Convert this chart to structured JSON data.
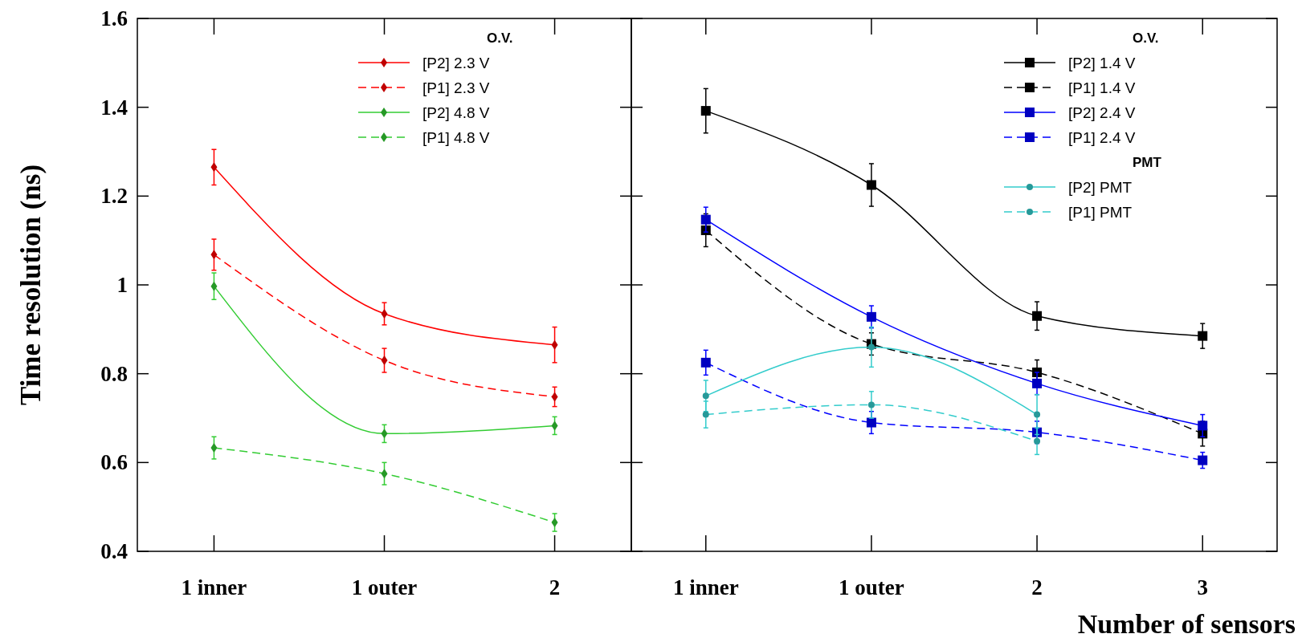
{
  "chart_data": [
    {
      "type": "line",
      "ylabel": "Time resolution (ns)",
      "legend_title": "O.V.",
      "categories": [
        "1 inner",
        "1 outer",
        "2"
      ],
      "ylim": [
        0.4,
        1.6
      ],
      "yticks": [
        0.4,
        0.6,
        0.8,
        1,
        1.2,
        1.4,
        1.6
      ],
      "legend": "top right",
      "tick_labels": "xy",
      "series": [
        {
          "name": "[P2] 2.3 V",
          "color": "#ff0000",
          "marker": "diamond",
          "line_style": "solid",
          "values": [
            1.265,
            0.935,
            0.865
          ],
          "errors": [
            0.04,
            0.025,
            0.04
          ]
        },
        {
          "name": "[P1] 2.3 V",
          "color": "#ff0000",
          "marker": "diamond",
          "line_style": "dashed",
          "values": [
            1.068,
            0.83,
            0.748
          ],
          "errors": [
            0.035,
            0.027,
            0.022
          ]
        },
        {
          "name": "[P2] 4.8 V",
          "color": "#33cc33",
          "marker": "diamond",
          "line_style": "solid",
          "values": [
            0.997,
            0.665,
            0.683
          ],
          "errors": [
            0.03,
            0.02,
            0.02
          ]
        },
        {
          "name": "[P1] 4.8 V",
          "color": "#33cc33",
          "marker": "diamond",
          "line_style": "dashed",
          "values": [
            0.633,
            0.575,
            0.465
          ],
          "errors": [
            0.025,
            0.025,
            0.02
          ]
        }
      ]
    },
    {
      "type": "line",
      "xlabel": "Number of sensors",
      "legend_title": "O.V.",
      "annotations": [
        "PMT"
      ],
      "categories": [
        "1 inner",
        "1 outer",
        "2",
        "3"
      ],
      "ylim": [
        0.4,
        1.6
      ],
      "yticks": [
        0.4,
        0.6,
        0.8,
        1,
        1.2,
        1.4,
        1.6
      ],
      "legend": "top right",
      "tick_labels": "x",
      "series": [
        {
          "name": "[P2] 1.4 V",
          "color": "#000000",
          "marker": "square",
          "line_style": "solid",
          "values": [
            1.392,
            1.225,
            0.93,
            0.885
          ],
          "errors": [
            0.05,
            0.048,
            0.032,
            0.028
          ]
        },
        {
          "name": "[P1] 1.4 V",
          "color": "#000000",
          "marker": "square",
          "line_style": "dashed",
          "values": [
            1.123,
            0.867,
            0.803,
            0.665
          ],
          "errors": [
            0.037,
            0.025,
            0.028,
            0.028
          ]
        },
        {
          "name": "[P2] 2.4 V",
          "color": "#0000ff",
          "marker": "square",
          "line_style": "solid",
          "values": [
            1.147,
            0.928,
            0.778,
            0.683
          ],
          "errors": [
            0.028,
            0.025,
            0.025,
            0.025
          ]
        },
        {
          "name": "[P1] 2.4 V",
          "color": "#0000ff",
          "marker": "square",
          "line_style": "dashed",
          "values": [
            0.825,
            0.69,
            0.668,
            0.605
          ],
          "errors": [
            0.028,
            0.025,
            0.025,
            0.018
          ]
        },
        {
          "name": "[P2] PMT",
          "color": "#33cccc",
          "marker": "circle",
          "line_style": "solid",
          "values": [
            0.75,
            0.86,
            0.708,
            null
          ],
          "errors": [
            0.035,
            0.045,
            0.045,
            null
          ]
        },
        {
          "name": "[P1] PMT",
          "color": "#33cccc",
          "marker": "circle",
          "line_style": "dashed",
          "values": [
            0.708,
            0.73,
            0.648,
            null
          ],
          "errors": [
            0.03,
            0.03,
            0.03,
            null
          ]
        }
      ]
    }
  ]
}
